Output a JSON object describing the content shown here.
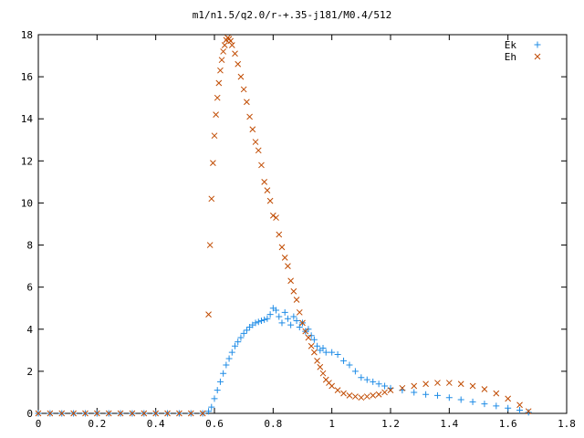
{
  "chart_data": {
    "type": "scatter",
    "title": "m1/n1.5/q2.0/r-+.35-j181/M0.4/512",
    "xlabel": "",
    "ylabel": "",
    "xlim": [
      0,
      1.8
    ],
    "ylim": [
      0,
      18
    ],
    "xticks": [
      0,
      0.2,
      0.4,
      0.6,
      0.8,
      1,
      1.2,
      1.4,
      1.6,
      1.8
    ],
    "xtick_labels": [
      "0",
      "0.2",
      "0.4",
      "0.6",
      "0.8",
      "1",
      "1.2",
      "1.4",
      "1.6",
      "1.8"
    ],
    "yticks": [
      0,
      2,
      4,
      6,
      8,
      10,
      12,
      14,
      16,
      18
    ],
    "ytick_labels": [
      "0",
      "2",
      "4",
      "6",
      "8",
      "10",
      "12",
      "14",
      "16",
      "18"
    ],
    "grid": false,
    "legend_position": "top-right",
    "series": [
      {
        "name": "Ek",
        "marker": "plus",
        "color": "#1f8ce6",
        "points": [
          [
            0.0,
            0
          ],
          [
            0.04,
            0
          ],
          [
            0.08,
            0
          ],
          [
            0.12,
            0
          ],
          [
            0.16,
            0
          ],
          [
            0.2,
            0
          ],
          [
            0.24,
            0
          ],
          [
            0.28,
            0
          ],
          [
            0.32,
            0
          ],
          [
            0.36,
            0
          ],
          [
            0.4,
            0
          ],
          [
            0.44,
            0
          ],
          [
            0.48,
            0
          ],
          [
            0.52,
            0
          ],
          [
            0.56,
            0
          ],
          [
            0.58,
            0.1
          ],
          [
            0.59,
            0.3
          ],
          [
            0.6,
            0.7
          ],
          [
            0.61,
            1.1
          ],
          [
            0.62,
            1.5
          ],
          [
            0.63,
            1.9
          ],
          [
            0.64,
            2.3
          ],
          [
            0.65,
            2.6
          ],
          [
            0.66,
            2.9
          ],
          [
            0.67,
            3.2
          ],
          [
            0.68,
            3.4
          ],
          [
            0.69,
            3.6
          ],
          [
            0.7,
            3.8
          ],
          [
            0.71,
            3.95
          ],
          [
            0.72,
            4.1
          ],
          [
            0.73,
            4.2
          ],
          [
            0.74,
            4.3
          ],
          [
            0.75,
            4.35
          ],
          [
            0.76,
            4.4
          ],
          [
            0.77,
            4.45
          ],
          [
            0.78,
            4.5
          ],
          [
            0.79,
            4.7
          ],
          [
            0.8,
            5.0
          ],
          [
            0.81,
            4.9
          ],
          [
            0.82,
            4.6
          ],
          [
            0.83,
            4.3
          ],
          [
            0.84,
            4.8
          ],
          [
            0.85,
            4.5
          ],
          [
            0.86,
            4.2
          ],
          [
            0.87,
            4.6
          ],
          [
            0.88,
            4.4
          ],
          [
            0.89,
            4.1
          ],
          [
            0.9,
            4.3
          ],
          [
            0.91,
            3.9
          ],
          [
            0.92,
            4.0
          ],
          [
            0.93,
            3.7
          ],
          [
            0.94,
            3.5
          ],
          [
            0.95,
            3.2
          ],
          [
            0.96,
            3.0
          ],
          [
            0.97,
            3.1
          ],
          [
            0.98,
            2.9
          ],
          [
            1.0,
            2.9
          ],
          [
            1.02,
            2.8
          ],
          [
            1.04,
            2.5
          ],
          [
            1.06,
            2.3
          ],
          [
            1.08,
            2.0
          ],
          [
            1.1,
            1.7
          ],
          [
            1.12,
            1.6
          ],
          [
            1.14,
            1.5
          ],
          [
            1.16,
            1.4
          ],
          [
            1.18,
            1.3
          ],
          [
            1.2,
            1.2
          ],
          [
            1.24,
            1.1
          ],
          [
            1.28,
            1.0
          ],
          [
            1.32,
            0.9
          ],
          [
            1.36,
            0.85
          ],
          [
            1.4,
            0.75
          ],
          [
            1.44,
            0.65
          ],
          [
            1.48,
            0.55
          ],
          [
            1.52,
            0.45
          ],
          [
            1.56,
            0.35
          ],
          [
            1.6,
            0.25
          ],
          [
            1.64,
            0.15
          ],
          [
            1.67,
            0.05
          ]
        ]
      },
      {
        "name": "Eh",
        "marker": "cross",
        "color": "#c04a00",
        "points": [
          [
            0.0,
            0
          ],
          [
            0.04,
            0
          ],
          [
            0.08,
            0
          ],
          [
            0.12,
            0
          ],
          [
            0.16,
            0
          ],
          [
            0.2,
            0
          ],
          [
            0.24,
            0
          ],
          [
            0.28,
            0
          ],
          [
            0.32,
            0
          ],
          [
            0.36,
            0
          ],
          [
            0.4,
            0
          ],
          [
            0.44,
            0
          ],
          [
            0.48,
            0
          ],
          [
            0.52,
            0
          ],
          [
            0.56,
            0
          ],
          [
            0.58,
            4.7
          ],
          [
            0.585,
            8.0
          ],
          [
            0.59,
            10.2
          ],
          [
            0.595,
            11.9
          ],
          [
            0.6,
            13.2
          ],
          [
            0.605,
            14.2
          ],
          [
            0.61,
            15.0
          ],
          [
            0.615,
            15.7
          ],
          [
            0.62,
            16.3
          ],
          [
            0.625,
            16.8
          ],
          [
            0.63,
            17.2
          ],
          [
            0.635,
            17.5
          ],
          [
            0.64,
            17.75
          ],
          [
            0.645,
            17.85
          ],
          [
            0.65,
            17.8
          ],
          [
            0.655,
            17.7
          ],
          [
            0.66,
            17.5
          ],
          [
            0.67,
            17.1
          ],
          [
            0.68,
            16.6
          ],
          [
            0.69,
            16.0
          ],
          [
            0.7,
            15.4
          ],
          [
            0.71,
            14.8
          ],
          [
            0.72,
            14.1
          ],
          [
            0.73,
            13.5
          ],
          [
            0.74,
            12.9
          ],
          [
            0.75,
            12.5
          ],
          [
            0.76,
            11.8
          ],
          [
            0.77,
            11.0
          ],
          [
            0.78,
            10.6
          ],
          [
            0.79,
            10.1
          ],
          [
            0.8,
            9.4
          ],
          [
            0.81,
            9.3
          ],
          [
            0.82,
            8.5
          ],
          [
            0.83,
            7.9
          ],
          [
            0.84,
            7.4
          ],
          [
            0.85,
            7.0
          ],
          [
            0.86,
            6.3
          ],
          [
            0.87,
            5.8
          ],
          [
            0.88,
            5.4
          ],
          [
            0.89,
            4.8
          ],
          [
            0.9,
            4.3
          ],
          [
            0.91,
            3.9
          ],
          [
            0.92,
            3.6
          ],
          [
            0.93,
            3.2
          ],
          [
            0.94,
            2.9
          ],
          [
            0.95,
            2.5
          ],
          [
            0.96,
            2.2
          ],
          [
            0.97,
            1.9
          ],
          [
            0.98,
            1.6
          ],
          [
            0.99,
            1.45
          ],
          [
            1.0,
            1.3
          ],
          [
            1.02,
            1.1
          ],
          [
            1.04,
            0.95
          ],
          [
            1.06,
            0.85
          ],
          [
            1.08,
            0.8
          ],
          [
            1.1,
            0.75
          ],
          [
            1.12,
            0.8
          ],
          [
            1.14,
            0.85
          ],
          [
            1.16,
            0.9
          ],
          [
            1.18,
            1.0
          ],
          [
            1.2,
            1.1
          ],
          [
            1.24,
            1.2
          ],
          [
            1.28,
            1.3
          ],
          [
            1.32,
            1.4
          ],
          [
            1.36,
            1.45
          ],
          [
            1.4,
            1.45
          ],
          [
            1.44,
            1.4
          ],
          [
            1.48,
            1.3
          ],
          [
            1.52,
            1.15
          ],
          [
            1.56,
            0.95
          ],
          [
            1.6,
            0.7
          ],
          [
            1.64,
            0.4
          ],
          [
            1.67,
            0.1
          ]
        ]
      }
    ]
  }
}
